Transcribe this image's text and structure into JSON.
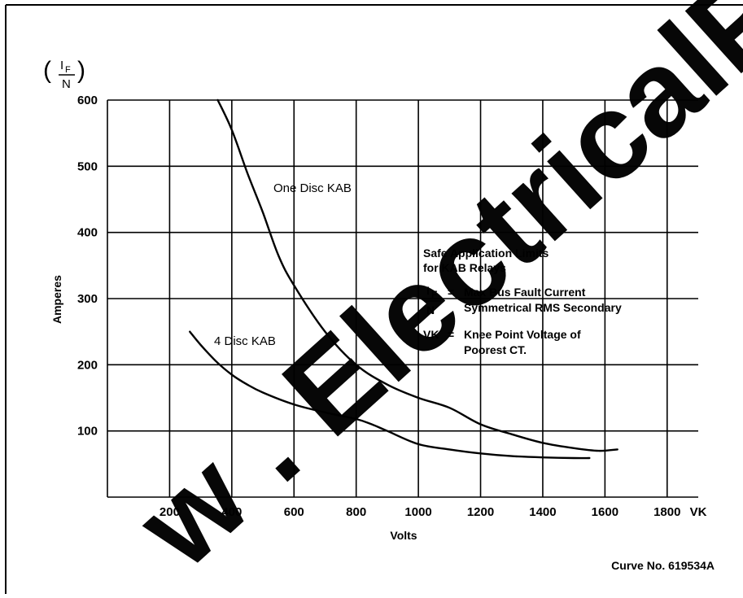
{
  "chart_data": {
    "type": "line",
    "x_label": "Volts",
    "x_axis_end_label": "VK",
    "y_label": "Amperes",
    "y_fraction_numerator": "I",
    "y_fraction_subscript": "F",
    "y_fraction_denominator": "N",
    "xlim": [
      0,
      1900
    ],
    "ylim": [
      0,
      600
    ],
    "x_ticks": [
      200,
      400,
      600,
      800,
      1000,
      1200,
      1400,
      1600,
      1800
    ],
    "y_ticks": [
      100,
      200,
      300,
      400,
      500,
      600
    ],
    "grid": true,
    "series": [
      {
        "name": "One Disc KAB",
        "points": [
          [
            355,
            600
          ],
          [
            400,
            555
          ],
          [
            450,
            490
          ],
          [
            500,
            430
          ],
          [
            550,
            365
          ],
          [
            600,
            320
          ],
          [
            700,
            250
          ],
          [
            800,
            200
          ],
          [
            900,
            170
          ],
          [
            1000,
            150
          ],
          [
            1100,
            135
          ],
          [
            1200,
            110
          ],
          [
            1300,
            95
          ],
          [
            1400,
            82
          ],
          [
            1500,
            74
          ],
          [
            1580,
            70
          ],
          [
            1640,
            72
          ]
        ]
      },
      {
        "name": "4 Disc KAB",
        "points": [
          [
            265,
            250
          ],
          [
            300,
            230
          ],
          [
            350,
            205
          ],
          [
            400,
            185
          ],
          [
            450,
            170
          ],
          [
            500,
            158
          ],
          [
            600,
            140
          ],
          [
            700,
            128
          ],
          [
            800,
            118
          ],
          [
            850,
            110
          ],
          [
            900,
            100
          ],
          [
            1000,
            80
          ],
          [
            1100,
            72
          ],
          [
            1200,
            66
          ],
          [
            1300,
            62
          ],
          [
            1400,
            60
          ],
          [
            1500,
            59
          ],
          [
            1550,
            59
          ]
        ]
      }
    ],
    "legend_block": {
      "heading_line1": "Safe Application Limits",
      "heading_line2": "for KAB Relays",
      "def1_symbol": "I",
      "def1_symbol_sub": "F",
      "def1_symbol_den": "N",
      "def1_eq": "=",
      "def1_line1": "Max Bus Fault Current",
      "def1_line2": "Symmetrical RMS Secondary",
      "def2_symbol": "VK",
      "def2_eq": "=",
      "def2_line1": "Knee Point Voltage of",
      "def2_line2": "Poorest CT."
    },
    "curve_number": "Curve No. 619534A"
  },
  "watermark": {
    "text": "w . ElectricalP",
    "color": "#000000"
  }
}
